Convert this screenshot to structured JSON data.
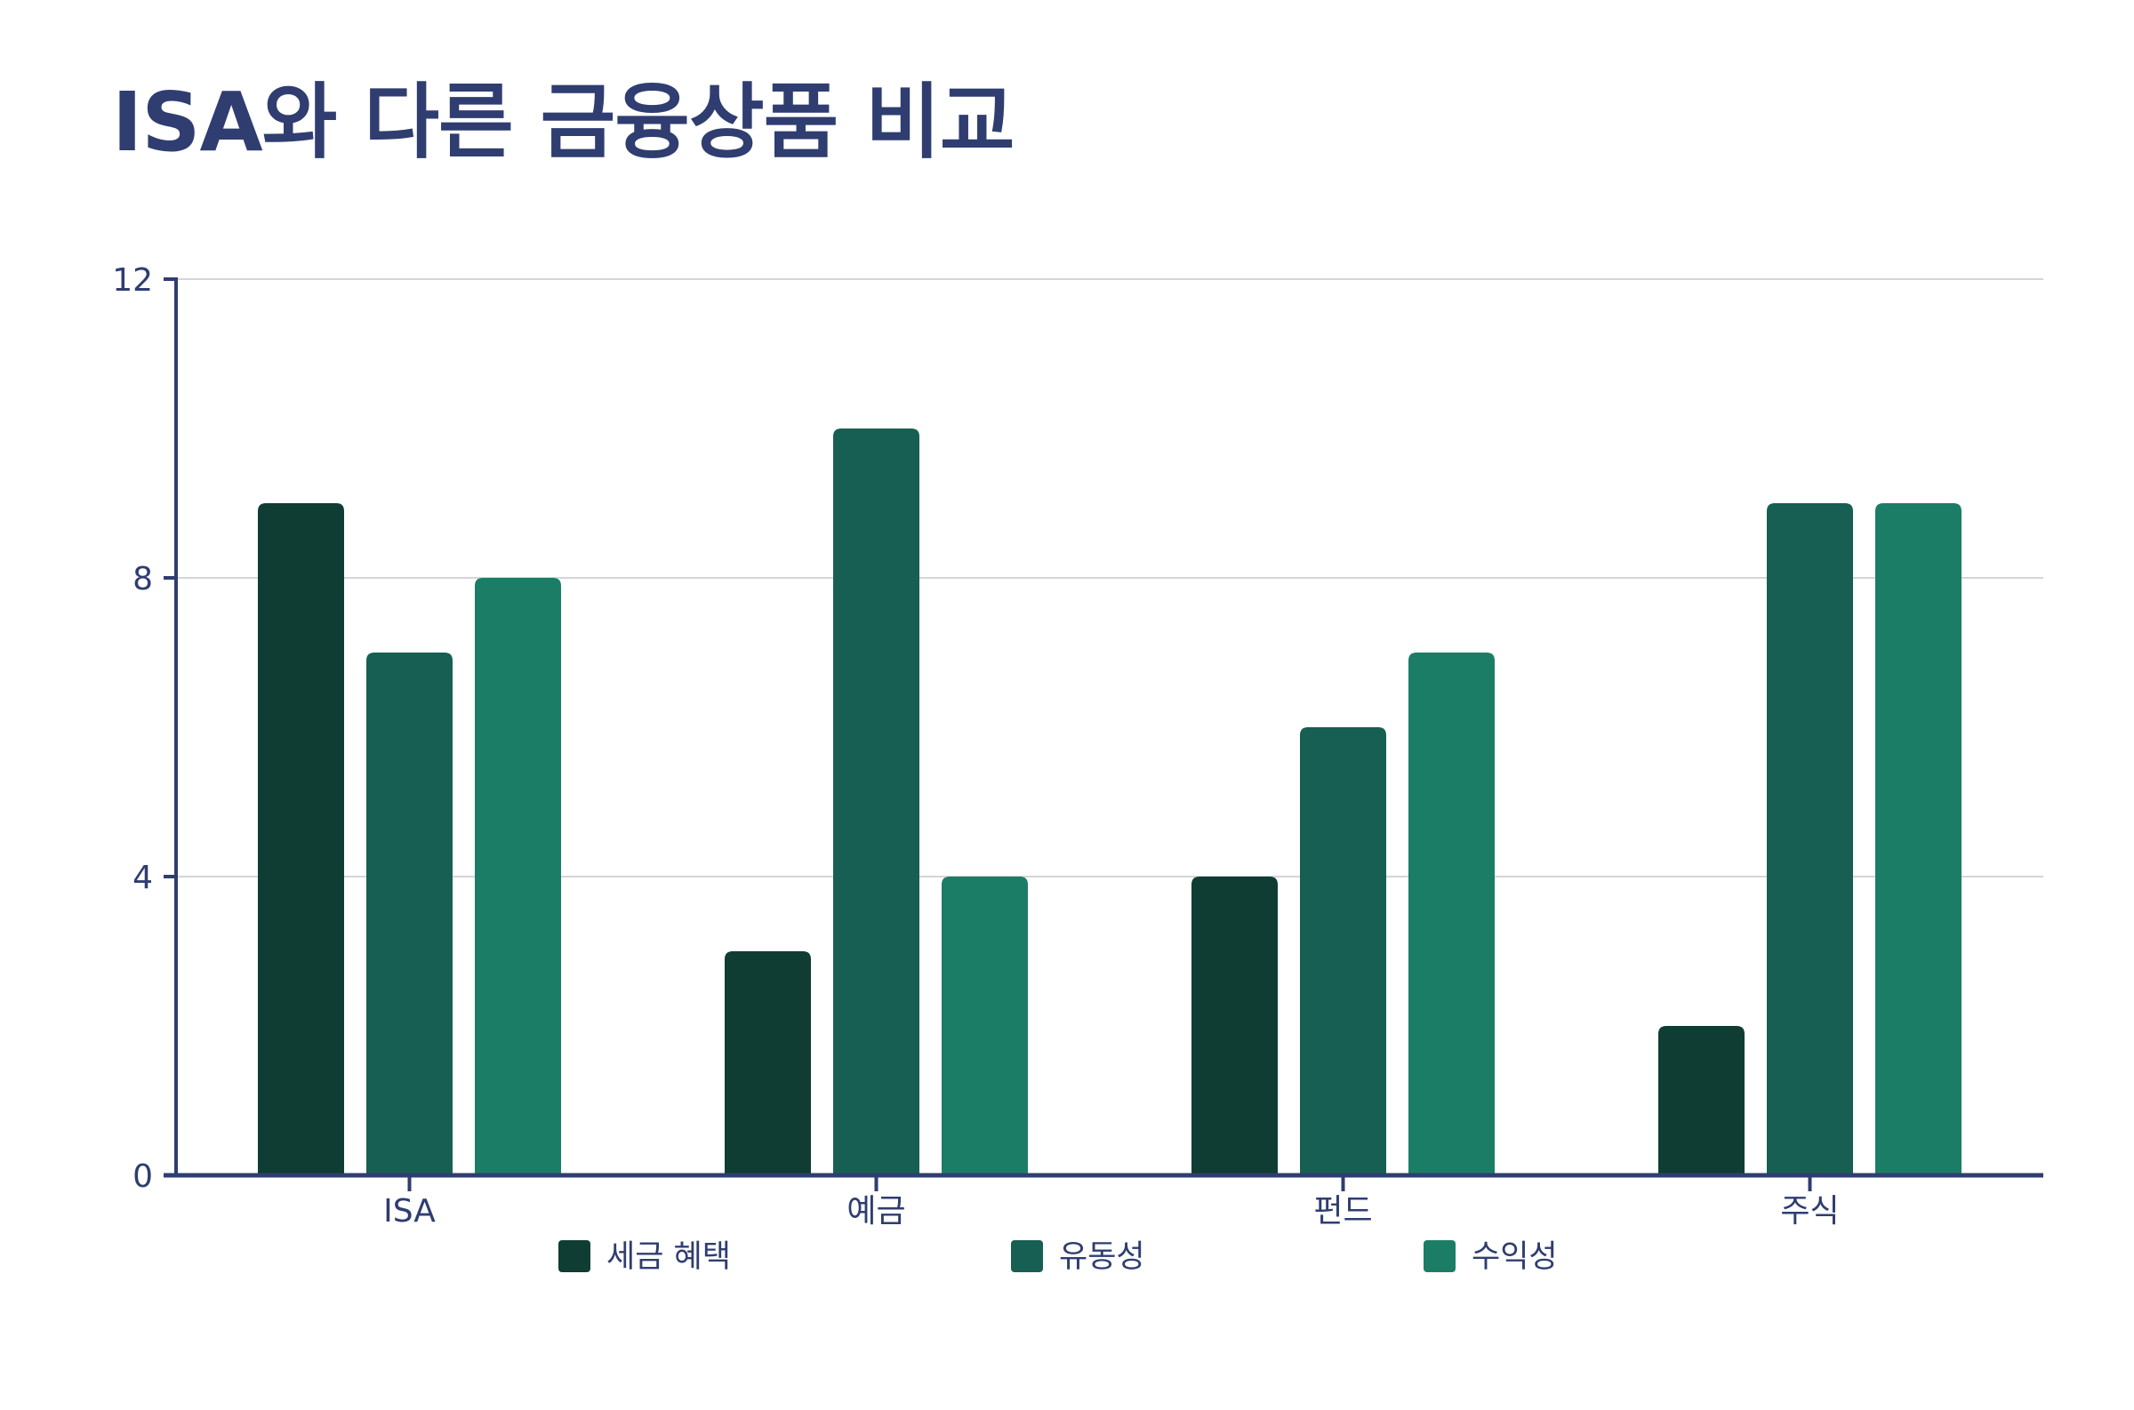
{
  "chart_data": {
    "type": "bar",
    "title": "ISA와 다른 금융상품 비교",
    "xlabel": "",
    "ylabel": "",
    "categories": [
      "ISA",
      "예금",
      "펀드",
      "주식"
    ],
    "series": [
      {
        "name": "세금 혜택",
        "values": [
          9,
          3,
          4,
          2
        ],
        "color": "#0f3d33"
      },
      {
        "name": "유동성",
        "values": [
          7,
          10,
          6,
          9
        ],
        "color": "#175f52"
      },
      {
        "name": "수익성",
        "values": [
          8,
          4,
          7,
          9
        ],
        "color": "#1c7d66"
      }
    ],
    "ylim": [
      0,
      12
    ],
    "yticks": [
      0,
      4,
      8,
      12
    ],
    "grid": true,
    "legend_position": "bottom",
    "axis_color": "#2f3d70",
    "grid_color": "#d5d5d9"
  }
}
